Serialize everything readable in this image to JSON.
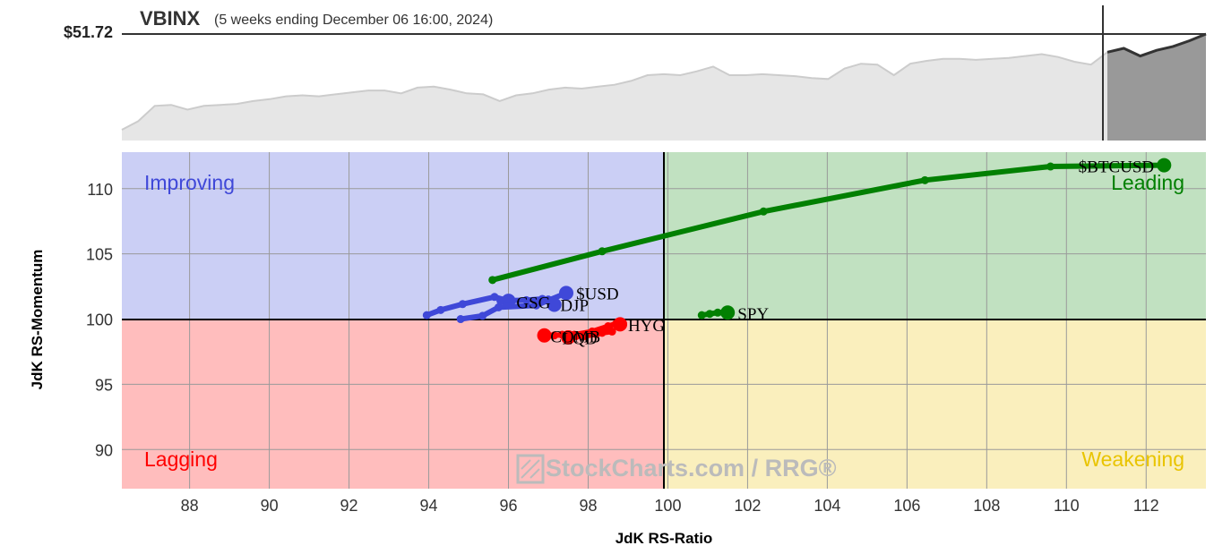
{
  "header": {
    "symbol": "VBINX",
    "period": "(5 weeks ending December 06 16:00, 2024)",
    "price": "$51.72"
  },
  "watermark": "StockCharts.com / RRG®",
  "colors": {
    "improving": "#cbcff5",
    "leading": "#c1e1c1",
    "lagging": "#ffbdbd",
    "weakening": "#faefbd",
    "blue": "#3f48d8",
    "green": "#028002",
    "red": "#ff0000",
    "gold": "#e9c400",
    "price_area": "#e6e6e6",
    "price_area_recent": "#999999"
  },
  "chart_data": [
    {
      "type": "area",
      "title": "VBINX",
      "subtitle": "(5 weeks ending December 06 16:00, 2024)",
      "last_price_label": "$51.72",
      "values": [
        0.0,
        0.09,
        0.25,
        0.26,
        0.21,
        0.25,
        0.26,
        0.27,
        0.3,
        0.32,
        0.35,
        0.36,
        0.35,
        0.37,
        0.39,
        0.41,
        0.41,
        0.38,
        0.44,
        0.45,
        0.42,
        0.38,
        0.37,
        0.3,
        0.36,
        0.38,
        0.42,
        0.44,
        0.43,
        0.45,
        0.47,
        0.51,
        0.57,
        0.58,
        0.57,
        0.61,
        0.66,
        0.57,
        0.57,
        0.58,
        0.57,
        0.56,
        0.54,
        0.53,
        0.64,
        0.69,
        0.68,
        0.57,
        0.69,
        0.72,
        0.74,
        0.74,
        0.73,
        0.74,
        0.75,
        0.77,
        0.79,
        0.76,
        0.71,
        0.68,
        0.81,
        0.85,
        0.77,
        0.83,
        0.87,
        0.93,
        1.0
      ],
      "recent_from_index": 60
    },
    {
      "type": "scatter",
      "xlabel": "JdK RS-Ratio",
      "ylabel": "JdK RS-Momentum",
      "xlim": [
        86.3,
        113.5
      ],
      "ylim": [
        87.0,
        112.8
      ],
      "xticks": [
        88,
        90,
        92,
        94,
        96,
        98,
        100,
        102,
        104,
        106,
        108,
        110,
        112
      ],
      "yticks": [
        90,
        95,
        100,
        105,
        110
      ],
      "center": [
        100,
        100
      ],
      "quadrants": [
        {
          "name": "Improving",
          "placement": "top-left"
        },
        {
          "name": "Leading",
          "placement": "top-right"
        },
        {
          "name": "Lagging",
          "placement": "bottom-left"
        },
        {
          "name": "Weakening",
          "placement": "bottom-right"
        }
      ],
      "series": [
        {
          "name": "$BTCUSD",
          "color": "green",
          "points": [
            [
              95.6,
              103.0
            ],
            [
              98.35,
              105.2
            ],
            [
              102.4,
              108.25
            ],
            [
              106.45,
              110.65
            ],
            [
              109.6,
              111.7
            ],
            [
              112.45,
              111.8
            ]
          ]
        },
        {
          "name": "SPY",
          "color": "green",
          "points": [
            [
              100.85,
              100.3
            ],
            [
              101.05,
              100.4
            ],
            [
              101.25,
              100.5
            ],
            [
              101.4,
              100.5
            ],
            [
              101.5,
              100.5
            ]
          ]
        },
        {
          "name": "$USD",
          "color": "blue",
          "points": [
            [
              94.8,
              100.0
            ],
            [
              95.35,
              100.25
            ],
            [
              95.75,
              100.9
            ],
            [
              96.7,
              101.05
            ],
            [
              97.45,
              102.0
            ]
          ]
        },
        {
          "name": "GSG",
          "color": "blue",
          "points": [
            [
              93.95,
              100.3
            ],
            [
              94.3,
              100.7
            ],
            [
              94.85,
              101.15
            ],
            [
              95.65,
              101.7
            ],
            [
              96.0,
              101.4
            ]
          ]
        },
        {
          "name": "DJP",
          "color": "blue",
          "points": [
            [
              95.8,
              101.4
            ],
            [
              96.45,
              101.45
            ],
            [
              96.85,
              101.55
            ],
            [
              97.0,
              101.5
            ],
            [
              97.15,
              101.1
            ]
          ]
        },
        {
          "name": "HYG",
          "color": "red",
          "points": [
            [
              97.65,
              98.8
            ],
            [
              98.1,
              99.05
            ],
            [
              98.5,
              99.45
            ],
            [
              98.7,
              99.65
            ],
            [
              98.8,
              99.6
            ]
          ]
        },
        {
          "name": "LQD",
          "color": "red",
          "points": [
            [
              97.9,
              98.7
            ],
            [
              98.2,
              98.85
            ],
            [
              98.35,
              98.95
            ],
            [
              98.6,
              99.05
            ],
            [
              97.5,
              98.6
            ]
          ]
        },
        {
          "name": "COMB",
          "color": "red",
          "points": [
            [
              97.7,
              98.7
            ],
            [
              97.55,
              98.75
            ],
            [
              97.35,
              98.8
            ],
            [
              97.15,
              98.75
            ],
            [
              96.9,
              98.75
            ]
          ]
        }
      ],
      "point_labels": [
        {
          "text": "$BTCUSD",
          "x": 110.3,
          "y": 111.75
        },
        {
          "text": "SPY",
          "x": 101.75,
          "y": 100.45
        },
        {
          "text": "$USD",
          "x": 97.7,
          "y": 102.0
        },
        {
          "text": "GSG",
          "x": 96.2,
          "y": 101.3
        },
        {
          "text": "DJP",
          "x": 97.3,
          "y": 101.1
        },
        {
          "text": "HYG",
          "x": 99.0,
          "y": 99.55
        },
        {
          "text": "LQD",
          "x": 97.35,
          "y": 98.55
        },
        {
          "text": "COMB",
          "x": 97.05,
          "y": 98.7
        }
      ]
    }
  ]
}
